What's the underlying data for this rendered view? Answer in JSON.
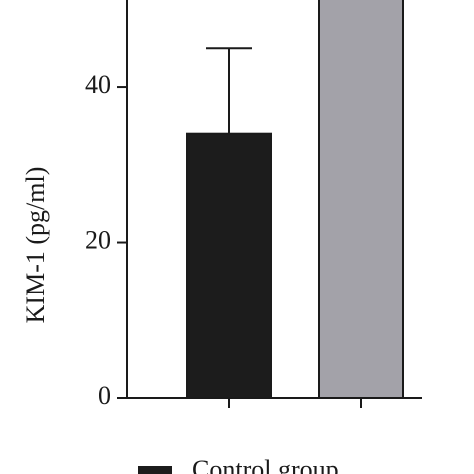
{
  "chart_data": {
    "type": "bar",
    "y_label": "KIM-1 (pg/ml)",
    "categories": [
      null,
      null
    ],
    "values": [
      34,
      60
    ],
    "errors": [
      11,
      null
    ],
    "colors": [
      "#1c1c1c",
      "#a3a2a9"
    ],
    "ylim": [
      0,
      51.2
    ],
    "yticks": [
      0,
      20,
      40
    ],
    "legend": [
      {
        "name": "Control group",
        "color": "#1c1c1c"
      }
    ]
  }
}
